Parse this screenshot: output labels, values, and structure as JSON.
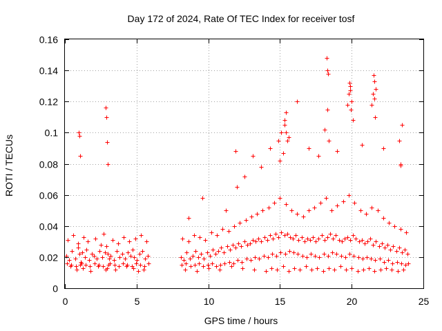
{
  "chart_data": {
    "type": "scatter",
    "title": "Day 172 of 2024, Rate Of TEC Index for receiver tosf",
    "xlabel": "GPS time / hours",
    "ylabel": "ROTI / TECUs",
    "xlim": [
      0,
      25
    ],
    "ylim": [
      0,
      0.16
    ],
    "xticks": [
      0,
      5,
      10,
      15,
      20,
      25
    ],
    "xtick_labels": [
      "0",
      "5",
      "10",
      "15",
      "20",
      "25"
    ],
    "yticks": [
      0,
      0.02,
      0.04,
      0.06,
      0.08,
      0.1,
      0.12,
      0.14,
      0.16
    ],
    "ytick_labels": [
      "0",
      "0.02",
      "0.04",
      "0.06",
      "0.08",
      "0.1",
      "0.12",
      "0.14",
      "0.16"
    ],
    "grid": true,
    "marker": "+",
    "color": "#ff0000",
    "series": [
      {
        "name": "ROTI",
        "x": [
          0.1,
          0.3,
          0.5,
          0.7,
          0.9,
          1.0,
          1.1,
          1.2,
          1.4,
          1.5,
          1.7,
          1.9,
          2.0,
          2.2,
          2.4,
          2.6,
          2.8,
          2.9,
          3.0,
          3.1,
          3.2,
          3.4,
          3.6,
          3.8,
          4.0,
          4.2,
          4.4,
          4.6,
          4.7,
          4.8,
          5.0,
          5.2,
          5.4,
          5.6,
          5.8,
          0.2,
          0.6,
          0.9,
          1.3,
          1.6,
          2.1,
          2.5,
          2.7,
          3.3,
          3.7,
          4.1,
          4.5,
          4.9,
          5.3,
          5.7,
          0.4,
          0.8,
          1.05,
          1.25,
          1.8,
          2.3,
          2.85,
          2.95,
          3.05,
          3.5,
          4.3,
          4.75,
          5.1,
          5.5,
          0.95,
          1.0,
          1.05,
          2.85,
          2.9,
          2.95,
          3.0,
          8.1,
          8.3,
          8.5,
          8.7,
          8.9,
          9.1,
          9.3,
          9.5,
          9.7,
          9.9,
          10.1,
          10.3,
          10.5,
          10.7,
          10.9,
          11.1,
          11.3,
          11.5,
          11.7,
          11.9,
          12.1,
          12.3,
          12.5,
          12.7,
          12.9,
          13.1,
          13.3,
          13.5,
          13.7,
          13.9,
          14.1,
          14.3,
          14.5,
          14.7,
          14.9,
          15.1,
          15.3,
          15.5,
          15.7,
          15.9,
          16.1,
          16.3,
          16.5,
          16.7,
          16.9,
          17.1,
          17.3,
          17.5,
          17.7,
          17.9,
          18.1,
          18.3,
          18.5,
          18.7,
          18.9,
          19.1,
          19.3,
          19.5,
          19.7,
          19.9,
          20.1,
          20.3,
          20.5,
          20.7,
          20.9,
          21.1,
          21.3,
          21.5,
          21.7,
          21.9,
          22.1,
          22.3,
          22.5,
          22.7,
          22.9,
          23.1,
          23.3,
          23.5,
          23.7,
          23.9,
          8.2,
          8.6,
          9.0,
          9.4,
          9.8,
          10.2,
          10.6,
          11.0,
          11.4,
          11.8,
          12.2,
          12.6,
          13.0,
          13.4,
          13.8,
          14.2,
          14.6,
          15.0,
          15.4,
          15.8,
          16.2,
          16.6,
          17.0,
          17.4,
          17.8,
          18.2,
          18.6,
          19.0,
          19.4,
          19.8,
          20.2,
          20.6,
          21.0,
          21.4,
          21.8,
          22.2,
          22.6,
          23.0,
          23.4,
          23.8,
          8.4,
          9.2,
          10.0,
          10.8,
          11.6,
          12.4,
          13.2,
          14.0,
          14.4,
          14.8,
          15.2,
          15.6,
          16.0,
          16.4,
          16.8,
          17.2,
          17.6,
          18.0,
          18.4,
          18.8,
          19.2,
          19.6,
          20.0,
          20.4,
          20.8,
          21.2,
          21.6,
          22.0,
          22.4,
          22.8,
          23.2,
          23.6,
          8.6,
          9.6,
          11.2,
          11.9,
          12.0,
          12.5,
          13.1,
          13.7,
          14.3,
          14.9,
          15.0,
          15.1,
          15.2,
          15.3,
          15.4,
          15.5,
          16.2,
          17.0,
          17.7,
          18.1,
          18.3,
          18.4,
          19.0,
          19.7,
          19.8,
          19.9,
          20.0,
          20.1,
          20.7,
          21.4,
          21.5,
          21.6,
          21.7,
          22.2,
          23.3,
          23.4,
          23.5,
          15.3,
          15.4,
          15.6,
          18.25,
          18.3,
          18.35,
          19.85,
          19.9,
          19.95,
          21.55,
          21.6,
          21.65,
          23.4,
          0.15,
          0.45,
          0.75,
          1.15,
          1.45,
          1.75,
          2.05,
          2.35,
          2.65,
          3.15,
          3.45,
          3.75,
          4.05,
          4.35,
          4.65,
          4.95,
          5.25,
          5.55,
          5.85,
          8.15,
          8.45,
          8.75,
          9.05,
          9.35,
          9.65,
          9.95,
          10.25,
          10.55,
          10.85,
          11.15,
          11.45,
          11.75,
          12.05,
          12.35,
          12.65,
          12.95,
          13.25,
          13.55,
          13.85,
          14.15,
          14.45,
          14.75,
          15.05,
          15.35,
          15.65,
          15.95,
          16.25,
          16.55,
          16.85,
          17.15,
          17.45,
          17.75,
          18.05,
          18.35,
          18.65,
          18.95,
          19.25,
          19.55,
          19.85,
          20.15,
          20.45,
          20.75,
          21.05,
          21.35,
          21.65,
          21.95,
          22.25,
          22.55,
          22.85,
          23.15,
          23.45,
          23.75,
          23.95
        ],
        "y": [
          0.021,
          0.018,
          0.024,
          0.019,
          0.026,
          0.022,
          0.017,
          0.023,
          0.02,
          0.025,
          0.018,
          0.022,
          0.021,
          0.019,
          0.024,
          0.02,
          0.023,
          0.027,
          0.022,
          0.019,
          0.021,
          0.018,
          0.024,
          0.02,
          0.022,
          0.019,
          0.023,
          0.021,
          0.025,
          0.02,
          0.018,
          0.022,
          0.024,
          0.019,
          0.021,
          0.031,
          0.034,
          0.029,
          0.033,
          0.03,
          0.032,
          0.028,
          0.035,
          0.031,
          0.029,
          0.033,
          0.03,
          0.032,
          0.034,
          0.03,
          0.014,
          0.012,
          0.015,
          0.013,
          0.011,
          0.014,
          0.012,
          0.013,
          0.015,
          0.012,
          0.014,
          0.013,
          0.011,
          0.012,
          0.1,
          0.098,
          0.085,
          0.116,
          0.11,
          0.094,
          0.08,
          0.02,
          0.018,
          0.023,
          0.019,
          0.021,
          0.024,
          0.02,
          0.022,
          0.019,
          0.023,
          0.021,
          0.025,
          0.022,
          0.024,
          0.026,
          0.023,
          0.027,
          0.025,
          0.028,
          0.026,
          0.029,
          0.027,
          0.03,
          0.028,
          0.029,
          0.031,
          0.03,
          0.032,
          0.03,
          0.033,
          0.031,
          0.034,
          0.032,
          0.035,
          0.033,
          0.036,
          0.034,
          0.035,
          0.033,
          0.032,
          0.034,
          0.031,
          0.033,
          0.03,
          0.032,
          0.031,
          0.033,
          0.03,
          0.032,
          0.034,
          0.031,
          0.033,
          0.035,
          0.032,
          0.034,
          0.031,
          0.03,
          0.032,
          0.033,
          0.031,
          0.034,
          0.032,
          0.03,
          0.031,
          0.029,
          0.03,
          0.032,
          0.028,
          0.03,
          0.027,
          0.029,
          0.026,
          0.028,
          0.025,
          0.027,
          0.024,
          0.026,
          0.023,
          0.025,
          0.022,
          0.032,
          0.03,
          0.034,
          0.033,
          0.031,
          0.036,
          0.034,
          0.038,
          0.037,
          0.04,
          0.042,
          0.044,
          0.046,
          0.048,
          0.05,
          0.052,
          0.055,
          0.058,
          0.054,
          0.05,
          0.048,
          0.046,
          0.05,
          0.052,
          0.055,
          0.058,
          0.05,
          0.053,
          0.056,
          0.06,
          0.055,
          0.05,
          0.048,
          0.052,
          0.05,
          0.045,
          0.042,
          0.04,
          0.038,
          0.036,
          0.012,
          0.011,
          0.013,
          0.012,
          0.014,
          0.013,
          0.012,
          0.011,
          0.013,
          0.012,
          0.014,
          0.011,
          0.013,
          0.012,
          0.014,
          0.012,
          0.013,
          0.011,
          0.013,
          0.012,
          0.014,
          0.012,
          0.013,
          0.011,
          0.012,
          0.013,
          0.011,
          0.012,
          0.013,
          0.012,
          0.011,
          0.012,
          0.045,
          0.058,
          0.05,
          0.088,
          0.065,
          0.072,
          0.085,
          0.078,
          0.09,
          0.095,
          0.082,
          0.1,
          0.087,
          0.105,
          0.113,
          0.095,
          0.12,
          0.09,
          0.085,
          0.102,
          0.115,
          0.095,
          0.088,
          0.118,
          0.125,
          0.13,
          0.12,
          0.108,
          0.092,
          0.118,
          0.125,
          0.133,
          0.128,
          0.09,
          0.095,
          0.08,
          0.105,
          0.108,
          0.1,
          0.097,
          0.148,
          0.14,
          0.138,
          0.132,
          0.127,
          0.115,
          0.137,
          0.122,
          0.11,
          0.079,
          0.016,
          0.015,
          0.014,
          0.016,
          0.015,
          0.014,
          0.016,
          0.015,
          0.014,
          0.016,
          0.015,
          0.014,
          0.016,
          0.015,
          0.014,
          0.016,
          0.015,
          0.014,
          0.016,
          0.015,
          0.016,
          0.014,
          0.015,
          0.016,
          0.014,
          0.015,
          0.016,
          0.014,
          0.015,
          0.016,
          0.017,
          0.016,
          0.018,
          0.017,
          0.019,
          0.018,
          0.02,
          0.019,
          0.021,
          0.02,
          0.022,
          0.021,
          0.023,
          0.022,
          0.024,
          0.023,
          0.022,
          0.021,
          0.02,
          0.022,
          0.021,
          0.02,
          0.022,
          0.021,
          0.023,
          0.022,
          0.021,
          0.02,
          0.022,
          0.021,
          0.02,
          0.019,
          0.02,
          0.019,
          0.018,
          0.019,
          0.017,
          0.018,
          0.016,
          0.017,
          0.016,
          0.015,
          0.016
        ]
      }
    ]
  }
}
